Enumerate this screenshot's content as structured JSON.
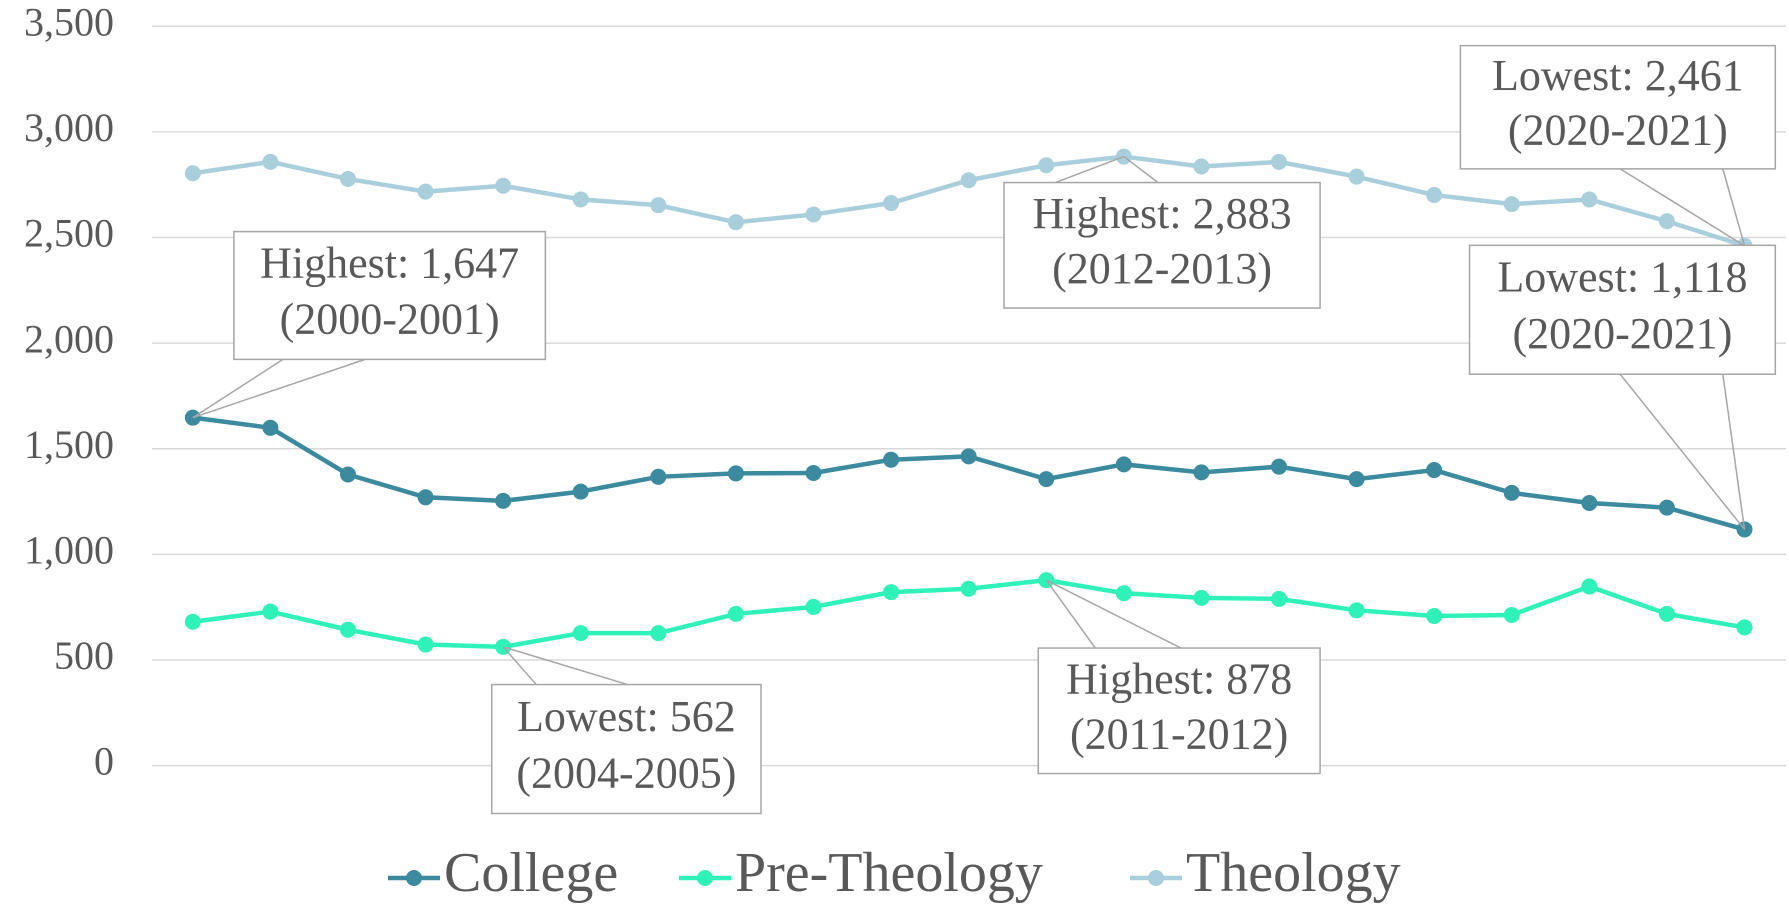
{
  "chart_data": {
    "type": "line",
    "categories": [
      null,
      null,
      null,
      null,
      null,
      null,
      null,
      null,
      null,
      null,
      null,
      null,
      null,
      null,
      null,
      null,
      null,
      null,
      null,
      null,
      null
    ],
    "series": [
      {
        "name": "College",
        "color": "#3b8a9e",
        "values": [
          1647,
          1599,
          1378,
          1270,
          1253,
          1297,
          1367,
          1383,
          1385,
          1448,
          1464,
          1356,
          1426,
          1388,
          1415,
          1356,
          1399,
          1291,
          1243,
          1221,
          1118
        ]
      },
      {
        "name": "Pre-Theology",
        "color": "#2ff2b8",
        "values": [
          681,
          729,
          643,
          573,
          562,
          627,
          627,
          718,
          751,
          821,
          837,
          878,
          816,
          794,
          789,
          735,
          708,
          713,
          848,
          718,
          654
        ]
      },
      {
        "name": "Theology",
        "color": "#a9cfdc",
        "values": [
          2804,
          2858,
          2777,
          2717,
          2745,
          2680,
          2653,
          2572,
          2609,
          2663,
          2771,
          2842,
          2883,
          2836,
          2858,
          2788,
          2701,
          2658,
          2680,
          2577,
          2461
        ]
      }
    ],
    "ylim": [
      0,
      3500
    ],
    "yticks": [
      0,
      500,
      {
        "value": 1000,
        "label": "1,000"
      },
      {
        "value": 1500,
        "label": "1,500"
      },
      {
        "value": 2000,
        "label": "2,000"
      },
      {
        "value": 2500,
        "label": "2,500"
      },
      {
        "value": 3000,
        "label": "3,000"
      },
      {
        "value": 3500,
        "label": "3,500"
      }
    ],
    "grid": true,
    "legend": "bottom",
    "annotations": [
      [
        "Highest: 1,647",
        "(2000-2001)"
      ],
      [
        "Highest: 2,883",
        "(2012-2013)"
      ],
      [
        "Lowest: 2,461",
        "(2020-2021)"
      ],
      [
        "Lowest: 1,118",
        "(2020-2021)"
      ],
      [
        "Lowest: 562",
        "(2004-2005)"
      ],
      [
        "Highest: 878",
        "(2011-2012)"
      ]
    ]
  }
}
